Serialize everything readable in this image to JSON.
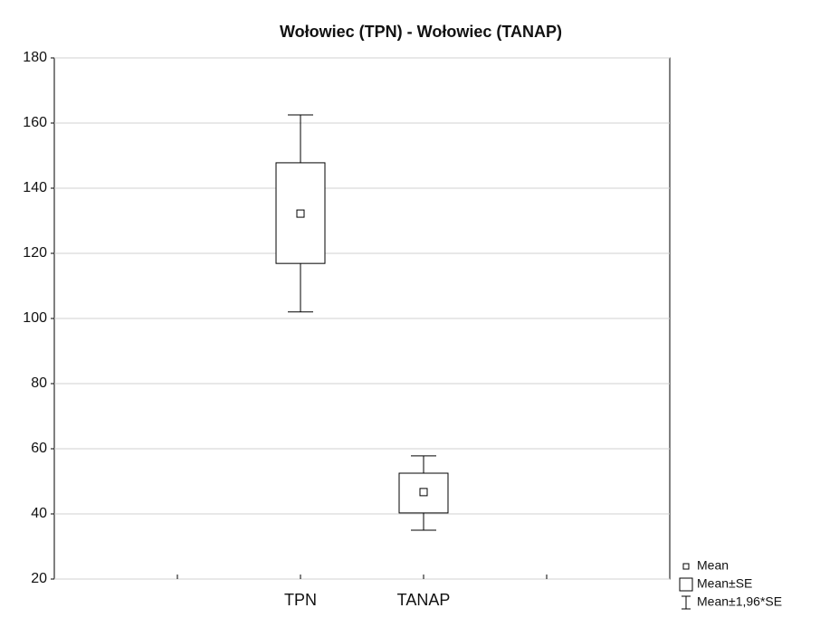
{
  "chart_data": {
    "type": "box",
    "title": "Wołowiec (TPN) - Wołowiec (TANAP)",
    "categories": [
      "TPN",
      "TANAP"
    ],
    "mean": [
      132.2,
      46.7
    ],
    "se_low": [
      116.9,
      40.3
    ],
    "se_high": [
      147.8,
      52.5
    ],
    "ci_low": [
      102,
      35
    ],
    "ci_high": [
      162.5,
      57.8
    ],
    "ylim": [
      20,
      180
    ],
    "yticks": [
      20,
      40,
      60,
      80,
      100,
      120,
      140,
      160,
      180
    ],
    "grid": true,
    "legend": [
      "Mean",
      "Mean±SE",
      "Mean±1,96*SE"
    ],
    "color": "#000000"
  }
}
